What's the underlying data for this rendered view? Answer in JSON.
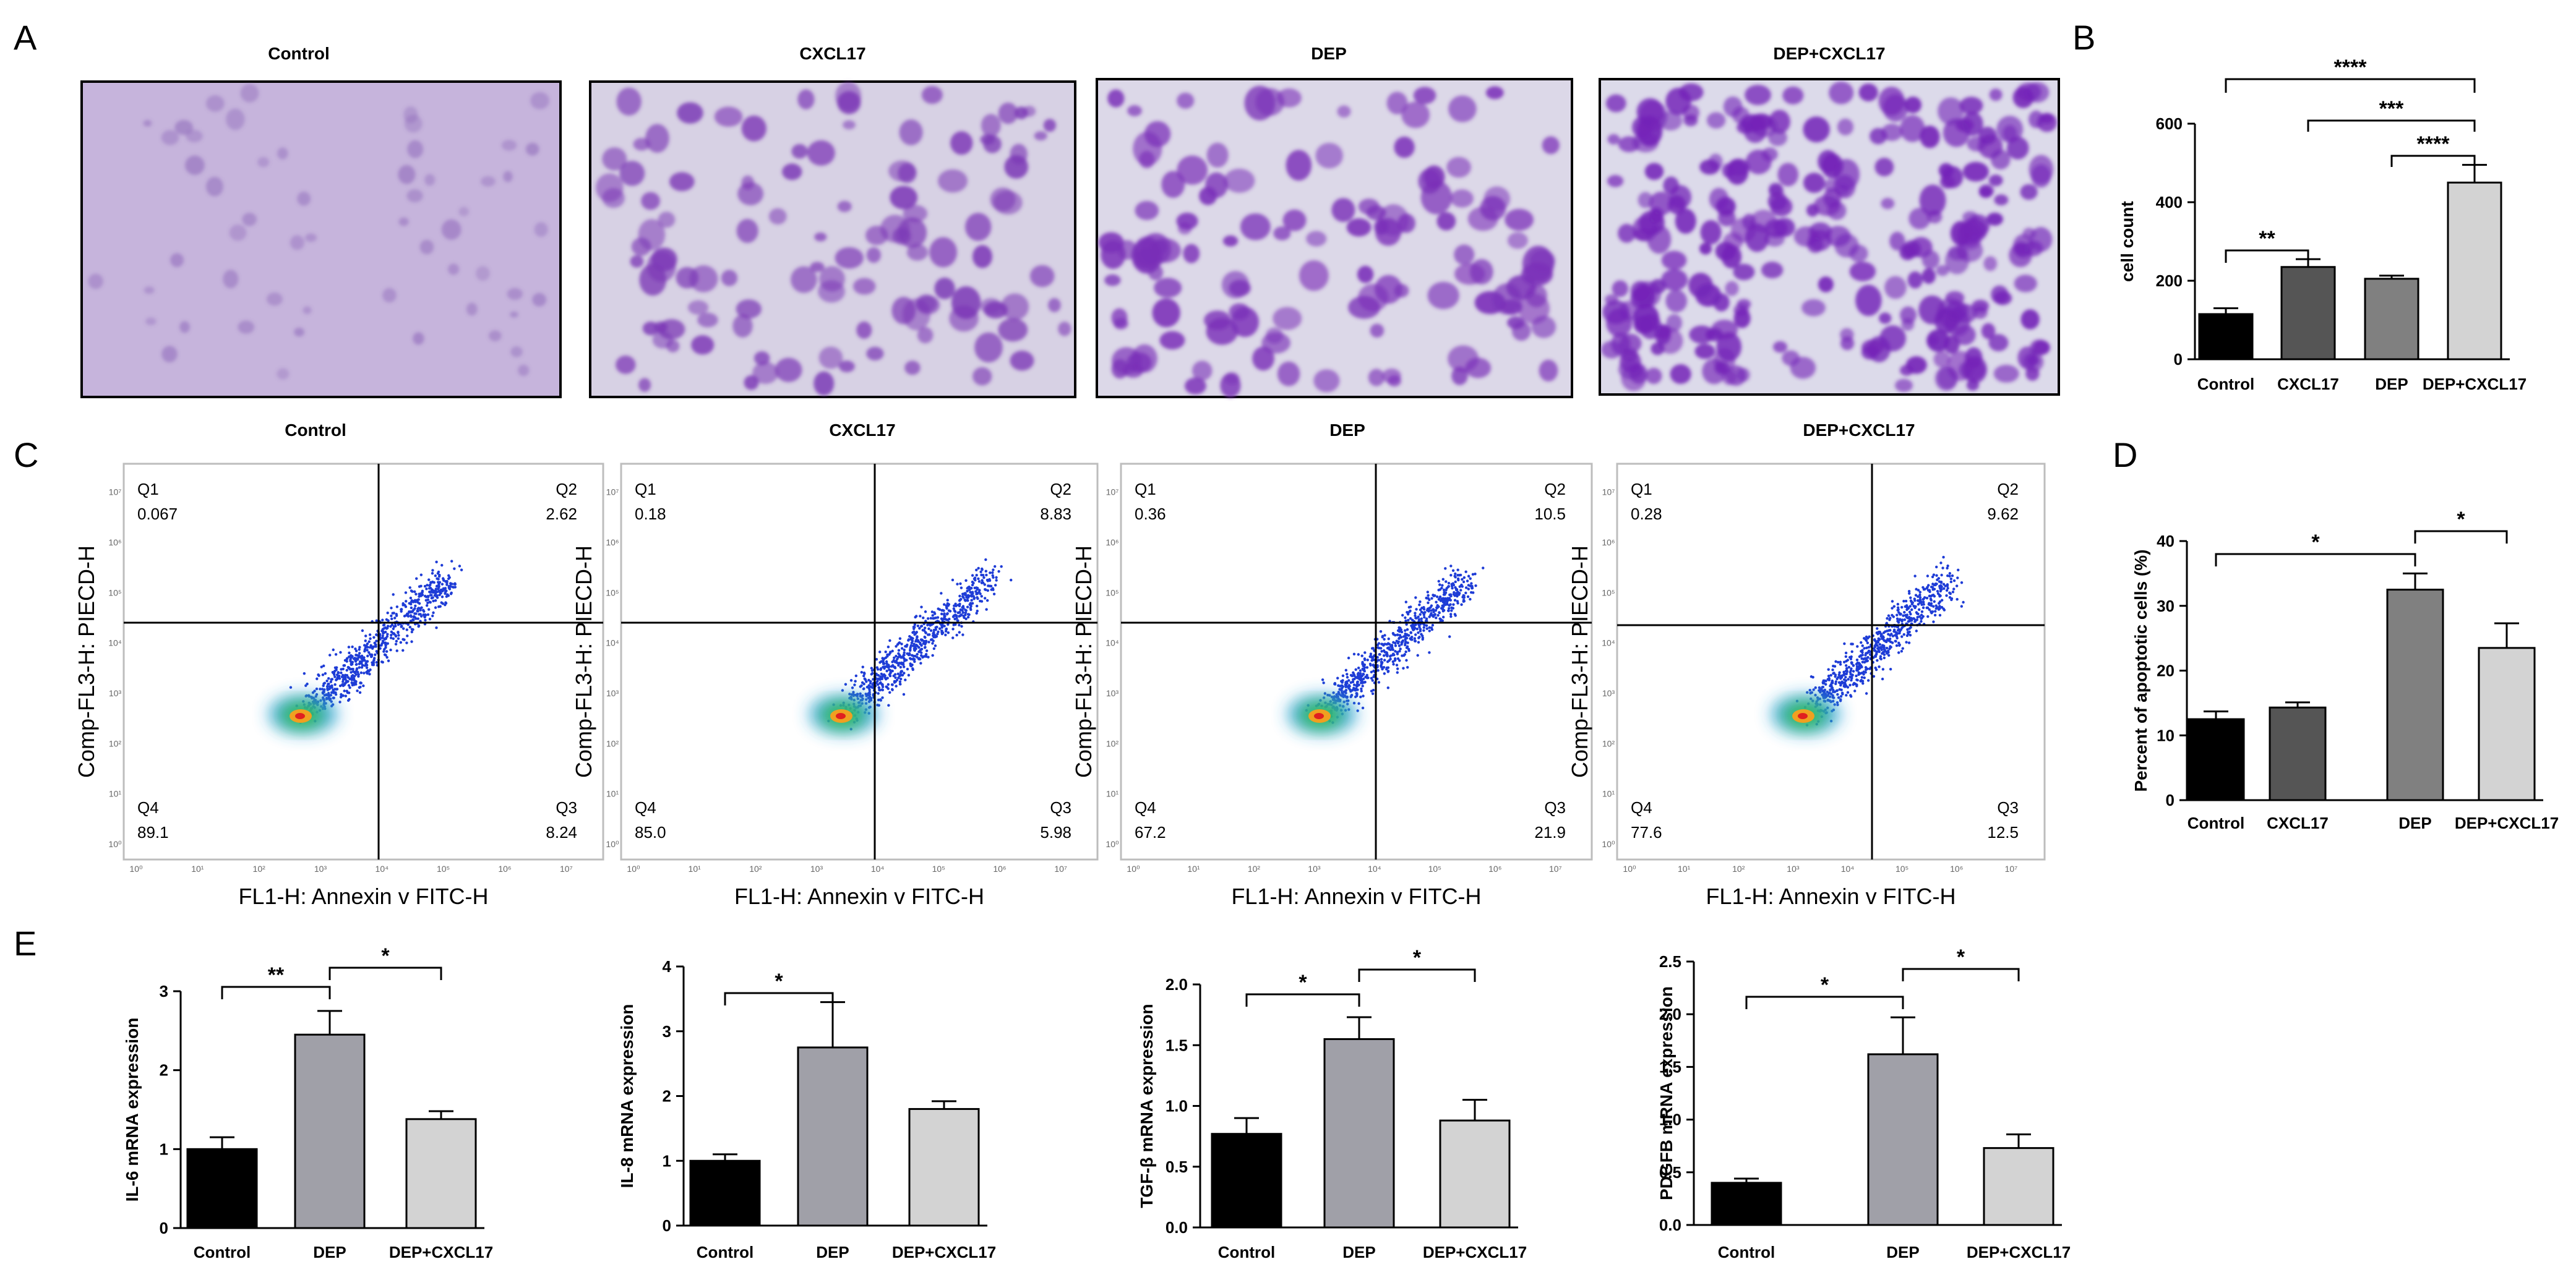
{
  "panel_labels": [
    "A",
    "B",
    "C",
    "D",
    "E"
  ],
  "microscopy": {
    "titles": [
      "Control",
      "CXCL17",
      "DEP",
      "DEP+CXCL17"
    ]
  },
  "flow": {
    "titles": [
      "Control",
      "CXCL17",
      "DEP",
      "DEP+CXCL17"
    ],
    "x_axis_label": "FL1-H: Annexin v FITC-H",
    "y_axis_label": "Comp-FL3-H: PIECD-H",
    "quadrant_names": [
      "Q1",
      "Q2",
      "Q3",
      "Q4"
    ],
    "quadrant_values": [
      {
        "Q1": "0.067",
        "Q2": "2.62",
        "Q3": "8.24",
        "Q4": "89.1"
      },
      {
        "Q1": "0.18",
        "Q2": "8.83",
        "Q3": "5.98",
        "Q4": "85.0"
      },
      {
        "Q1": "0.36",
        "Q2": "10.5",
        "Q3": "21.9",
        "Q4": "67.2"
      },
      {
        "Q1": "0.28",
        "Q2": "9.62",
        "Q3": "12.5",
        "Q4": "77.6"
      }
    ],
    "tick_labels": [
      "10⁰",
      "10¹",
      "10²",
      "10³",
      "10⁴",
      "10⁵",
      "10⁶",
      "10⁷"
    ]
  },
  "chart_data": [
    {
      "id": "B",
      "type": "bar",
      "categories": [
        "Control",
        "CXCL17",
        "DEP",
        "DEP+CXCL17"
      ],
      "values": [
        115,
        235,
        205,
        450
      ],
      "errors": [
        15,
        20,
        8,
        45
      ],
      "colors": [
        "#000000",
        "#555555",
        "#808080",
        "#d3d3d3"
      ],
      "ylabel": "cell count",
      "ylim": [
        0,
        600
      ],
      "yticks": [
        0,
        200,
        400,
        600
      ],
      "significance": [
        {
          "from": 0,
          "to": 1,
          "label": "**"
        },
        {
          "from": 2,
          "to": 3,
          "label": "****"
        },
        {
          "from": 1,
          "to": 3,
          "label": "***"
        },
        {
          "from": 0,
          "to": 3,
          "label": "****"
        }
      ]
    },
    {
      "id": "D",
      "type": "bar",
      "categories": [
        "Control",
        "CXCL17",
        "DEP",
        "DEP+CXCL17"
      ],
      "values": [
        12.5,
        14.3,
        32.5,
        23.5
      ],
      "errors": [
        1.2,
        0.8,
        2.5,
        3.8
      ],
      "colors": [
        "#000000",
        "#555555",
        "#808080",
        "#d3d3d3"
      ],
      "ylabel": "Percent of apoptotic cells (%)",
      "ylim": [
        0,
        40
      ],
      "yticks": [
        0,
        10,
        20,
        30,
        40
      ],
      "significance": [
        {
          "from": 0,
          "to": 2,
          "label": "*"
        },
        {
          "from": 2,
          "to": 3,
          "label": "*"
        }
      ]
    },
    {
      "id": "E1",
      "type": "bar",
      "categories": [
        "Control",
        "DEP",
        "DEP+CXCL17"
      ],
      "values": [
        1.0,
        2.45,
        1.38
      ],
      "errors": [
        0.15,
        0.3,
        0.1
      ],
      "colors": [
        "#000000",
        "#a0a0a8",
        "#d3d3d3"
      ],
      "ylabel": "IL-6 mRNA expression",
      "ylim": [
        0,
        3
      ],
      "yticks": [
        0,
        1,
        2,
        3
      ],
      "significance": [
        {
          "from": 0,
          "to": 1,
          "label": "**"
        },
        {
          "from": 1,
          "to": 2,
          "label": "*"
        }
      ]
    },
    {
      "id": "E2",
      "type": "bar",
      "categories": [
        "Control",
        "DEP",
        "DEP+CXCL17"
      ],
      "values": [
        1.0,
        2.75,
        1.8
      ],
      "errors": [
        0.1,
        0.7,
        0.12
      ],
      "colors": [
        "#000000",
        "#a0a0a8",
        "#d3d3d3"
      ],
      "ylabel": "IL-8 mRNA expression",
      "ylim": [
        0,
        4
      ],
      "yticks": [
        0,
        1,
        2,
        3,
        4
      ],
      "significance": [
        {
          "from": 0,
          "to": 1,
          "label": "*"
        }
      ]
    },
    {
      "id": "E3",
      "type": "bar",
      "categories": [
        "Control",
        "DEP",
        "DEP+CXCL17"
      ],
      "values": [
        0.77,
        1.55,
        0.88
      ],
      "errors": [
        0.13,
        0.18,
        0.17
      ],
      "colors": [
        "#000000",
        "#a0a0a8",
        "#d3d3d3"
      ],
      "ylabel": "TGF-β mRNA expression",
      "ylim": [
        0,
        2.0
      ],
      "yticks": [
        0,
        0.5,
        1.0,
        1.5,
        2.0
      ],
      "significance": [
        {
          "from": 0,
          "to": 1,
          "label": "*"
        },
        {
          "from": 1,
          "to": 2,
          "label": "*"
        }
      ]
    },
    {
      "id": "E4",
      "type": "bar",
      "categories": [
        "Control",
        "DEP",
        "DEP+CXCL17"
      ],
      "values": [
        0.4,
        1.62,
        0.73
      ],
      "errors": [
        0.04,
        0.35,
        0.13
      ],
      "colors": [
        "#000000",
        "#a0a0a8",
        "#d3d3d3"
      ],
      "ylabel": "PDGFB mRNA expression",
      "ylim": [
        0,
        2.5
      ],
      "yticks": [
        0,
        0.5,
        1.0,
        1.5,
        2.0,
        2.5
      ],
      "significance": [
        {
          "from": 0,
          "to": 1,
          "label": "*"
        },
        {
          "from": 1,
          "to": 2,
          "label": "*"
        }
      ]
    }
  ]
}
